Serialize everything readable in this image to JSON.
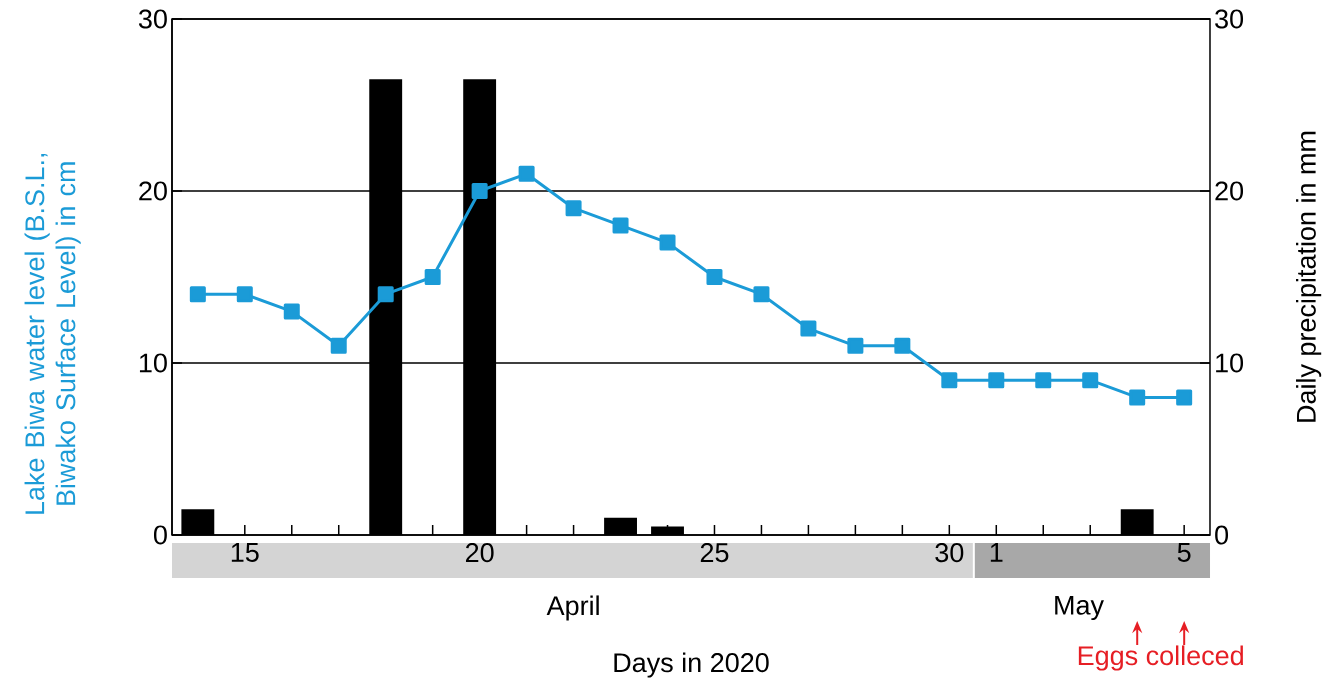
{
  "chart_data": {
    "type": "line",
    "xlabel": "Days in 2020",
    "ylabel": "Lake Biwa water level (B.S.L., Biwako Surface Level) in cm",
    "y2label": "Daily precipitation in mm",
    "categories": [
      null,
      "15",
      null,
      null,
      null,
      null,
      "20",
      null,
      null,
      null,
      null,
      "25",
      null,
      null,
      null,
      null,
      "30",
      "1",
      null,
      null,
      null,
      "5"
    ],
    "series": [
      {
        "type": "bar",
        "axis": "y2",
        "color": "#000000",
        "values": [
          1.5,
          0,
          0,
          0,
          26.5,
          0,
          26.5,
          0,
          0,
          1,
          0.5,
          0,
          0,
          0,
          0,
          0,
          0,
          0,
          0,
          0,
          1.5,
          0
        ]
      },
      {
        "color": "#1b9bd7",
        "values": [
          14,
          14,
          13,
          11,
          14,
          15,
          20,
          21,
          19,
          18,
          17,
          15,
          14,
          12,
          11,
          11,
          9,
          9,
          9,
          9,
          8,
          8
        ]
      }
    ],
    "marker": "square",
    "ylim": [
      0,
      30
    ],
    "yticks": [
      0,
      10,
      20,
      30
    ],
    "y2lim": [
      0,
      30
    ],
    "y2ticks": [
      0,
      10,
      20,
      30
    ],
    "grid": "y",
    "annotations": [
      "April",
      "May",
      "Eggs colleced"
    ]
  }
}
